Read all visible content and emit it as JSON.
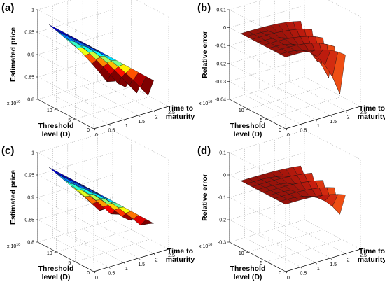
{
  "panel_labels": [
    "(a)",
    "(b)",
    "(c)",
    "(d)"
  ],
  "chart_data": [
    {
      "type": "surface",
      "panel": "(a)",
      "xlabel": "Time to maturity",
      "ylabel": "Threshold level (D)",
      "zlabel": "Estimated price",
      "x_ticks": [
        "0",
        "0.5",
        "1",
        "1.5",
        "2",
        "2.5"
      ],
      "y_ticks": [
        "0",
        "5",
        "10"
      ],
      "y_exponent": "x 10",
      "y_exponent_power": "10",
      "z_ticks": [
        "0.8",
        "0.85",
        "0.9",
        "0.95",
        "1"
      ],
      "xlim": [
        0,
        2.5
      ],
      "ylim": [
        0,
        15
      ],
      "zlim": [
        0.8,
        1
      ],
      "colormap": "jet",
      "grid": true,
      "x": [
        0,
        0.25,
        0.5,
        0.75,
        1,
        1.25,
        1.5,
        1.75,
        2
      ],
      "y": [
        0,
        1.5,
        3,
        4.5,
        6,
        7.5,
        9,
        10.5,
        12
      ],
      "surface": {
        "z_at_origin": 0.98,
        "z_slope_x": -0.045,
        "z_oscillation_amplitude": 0.035,
        "z_min_clip": 0.82
      }
    },
    {
      "type": "surface",
      "panel": "(b)",
      "xlabel": "Time to maturity",
      "ylabel": "Threshold level (D)",
      "zlabel": "Relative error",
      "x_ticks": [
        "0",
        "0.5",
        "1",
        "1.5",
        "2",
        "2.5"
      ],
      "y_ticks": [
        "0",
        "5",
        "10"
      ],
      "y_exponent": "x 10",
      "y_exponent_power": "10",
      "z_ticks": [
        "-0.04",
        "-0.03",
        "-0.02",
        "-0.01",
        "0",
        "0.01"
      ],
      "xlim": [
        0,
        2.5
      ],
      "ylim": [
        0,
        15
      ],
      "zlim": [
        -0.04,
        0.01
      ],
      "colormap": "hot",
      "grid": true,
      "x": [
        0,
        0.25,
        0.5,
        0.75,
        1,
        1.25,
        1.5,
        1.75,
        2
      ],
      "y": [
        0,
        1.5,
        3,
        4.5,
        6,
        7.5,
        9,
        10.5,
        12
      ],
      "surface": {
        "z_plateau": 0.0,
        "z_min": -0.035
      }
    },
    {
      "type": "surface",
      "panel": "(c)",
      "xlabel": "Time to maturity",
      "ylabel": "Threshold level (D)",
      "zlabel": "Estimated price",
      "x_ticks": [
        "0",
        "0.5",
        "1",
        "1.5",
        "2",
        "2.5"
      ],
      "y_ticks": [
        "0",
        "5",
        "10"
      ],
      "y_exponent": "x 10",
      "y_exponent_power": "10",
      "z_ticks": [
        "0.8",
        "0.85",
        "0.9",
        "0.95",
        "1"
      ],
      "xlim": [
        0,
        2.5
      ],
      "ylim": [
        0,
        15
      ],
      "zlim": [
        0.8,
        1
      ],
      "colormap": "jet",
      "grid": true,
      "x": [
        0,
        0.25,
        0.5,
        0.75,
        1,
        1.25,
        1.5,
        1.75,
        2
      ],
      "y": [
        0,
        1.5,
        3,
        4.5,
        6,
        7.5,
        9,
        10.5,
        12
      ],
      "surface": {
        "z_at_origin": 0.98,
        "z_slope_x": -0.045,
        "z_oscillation_amplitude": 0.02,
        "z_min_clip": 0.86
      }
    },
    {
      "type": "surface",
      "panel": "(d)",
      "xlabel": "Time to maturity",
      "ylabel": "Threshold level (D)",
      "zlabel": "Relative error",
      "x_ticks": [
        "0",
        "0.5",
        "1",
        "1.5",
        "2",
        "2.5"
      ],
      "y_ticks": [
        "0",
        "5",
        "10"
      ],
      "y_exponent": "x 10",
      "y_exponent_power": "10",
      "z_ticks": [
        "-0.3",
        "-0.2",
        "-0.1",
        "0",
        "0.1"
      ],
      "xlim": [
        0,
        2.5
      ],
      "ylim": [
        0,
        15
      ],
      "zlim": [
        -0.3,
        0.1
      ],
      "colormap": "hot",
      "grid": true,
      "x": [
        0,
        0.25,
        0.5,
        0.75,
        1,
        1.25,
        1.5,
        1.75,
        2
      ],
      "y": [
        0,
        1.5,
        3,
        4.5,
        6,
        7.5,
        9,
        10.5,
        12
      ],
      "surface": {
        "z_plateau": 0.0,
        "z_min": -0.15
      }
    }
  ]
}
